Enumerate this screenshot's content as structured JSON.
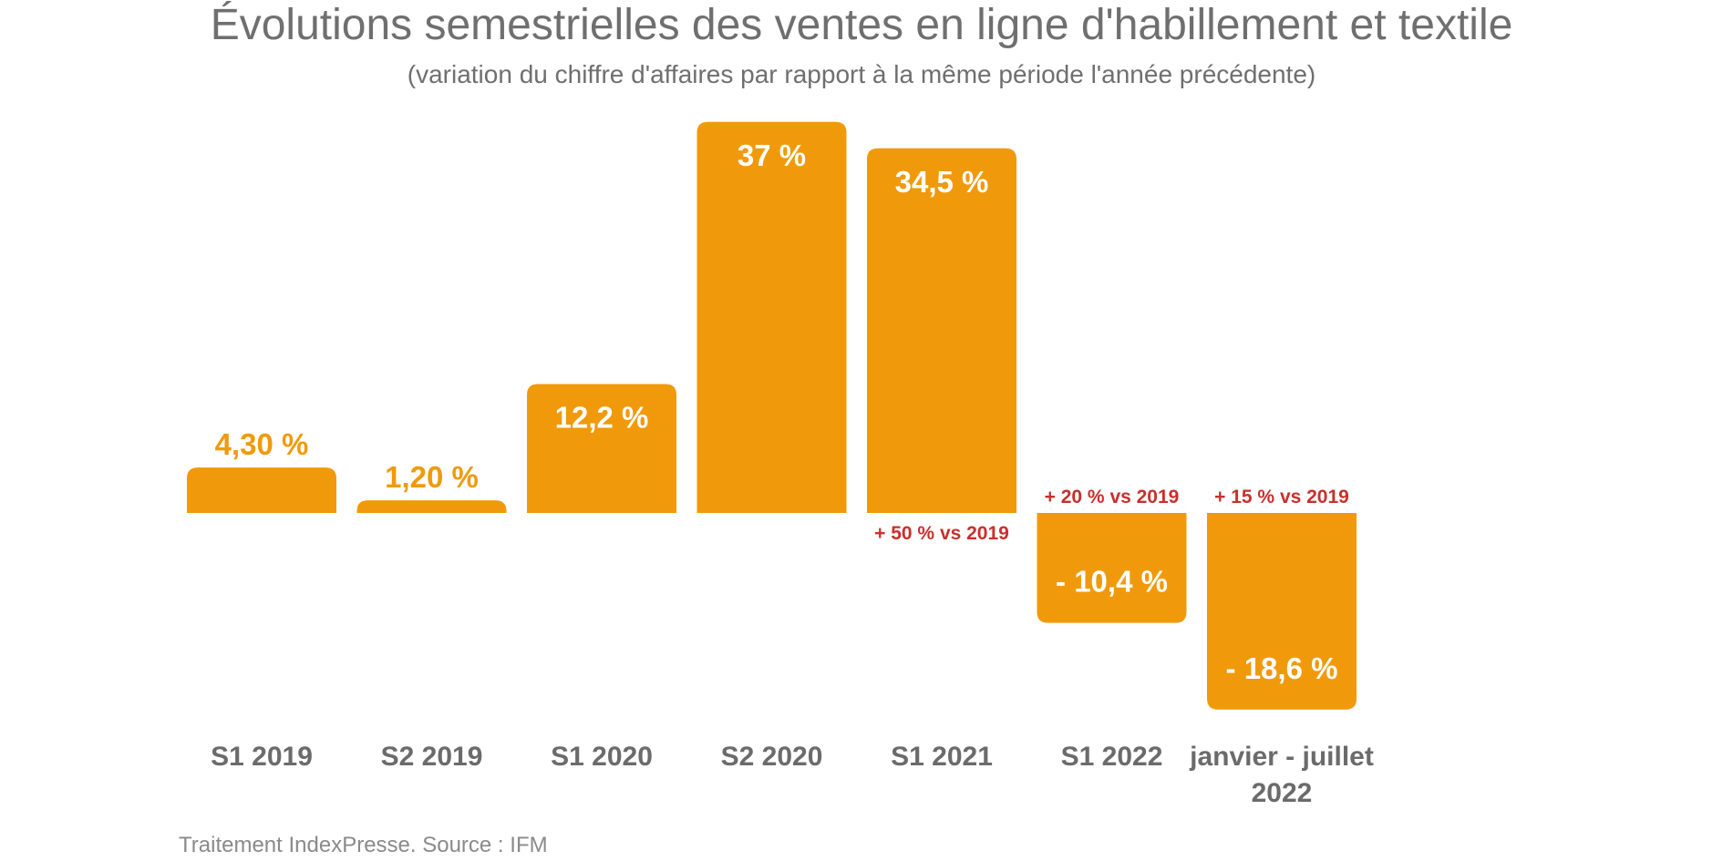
{
  "colors": {
    "bar": "#F09A0B",
    "title": "#6f6f6f",
    "subtitle": "#6f6f6f",
    "category": "#6b6b6b",
    "note": "#C8302C",
    "source": "#8a8a8a",
    "inside_label": "#ffffff",
    "outside_label": "#F09A0B"
  },
  "chart_data": {
    "type": "bar",
    "title": "Évolutions semestrielles des ventes en ligne d'habillement et textile",
    "subtitle": "(variation du chiffre d'affaires par rapport à la même période l'année précédente)",
    "xlabel": "",
    "ylabel": "",
    "grid": false,
    "ylim": [
      -20,
      37
    ],
    "categories": [
      [
        "S1 2019"
      ],
      [
        "S2 2019"
      ],
      [
        "S1 2020"
      ],
      [
        "S2 2020"
      ],
      [
        "S1 2021"
      ],
      [
        "S1 2022"
      ],
      [
        "janvier - juillet",
        "2022"
      ]
    ],
    "values": [
      4.3,
      1.2,
      12.2,
      37,
      34.5,
      -10.4,
      -18.6
    ],
    "data_labels": [
      "4,30 %",
      "1,20 %",
      "12,2 %",
      "37 %",
      "34,5 %",
      "- 10,4 %",
      "- 18,6 %"
    ],
    "annotations": [
      {
        "bar_index": 4,
        "text": "+ 50 % vs 2019",
        "placement": "below-axis"
      },
      {
        "bar_index": 5,
        "text": "+ 20 % vs 2019",
        "placement": "above-axis"
      },
      {
        "bar_index": 6,
        "text": "+ 15 % vs 2019",
        "placement": "above-axis"
      }
    ]
  },
  "source": "Traitement IndexPresse. Source : IFM"
}
